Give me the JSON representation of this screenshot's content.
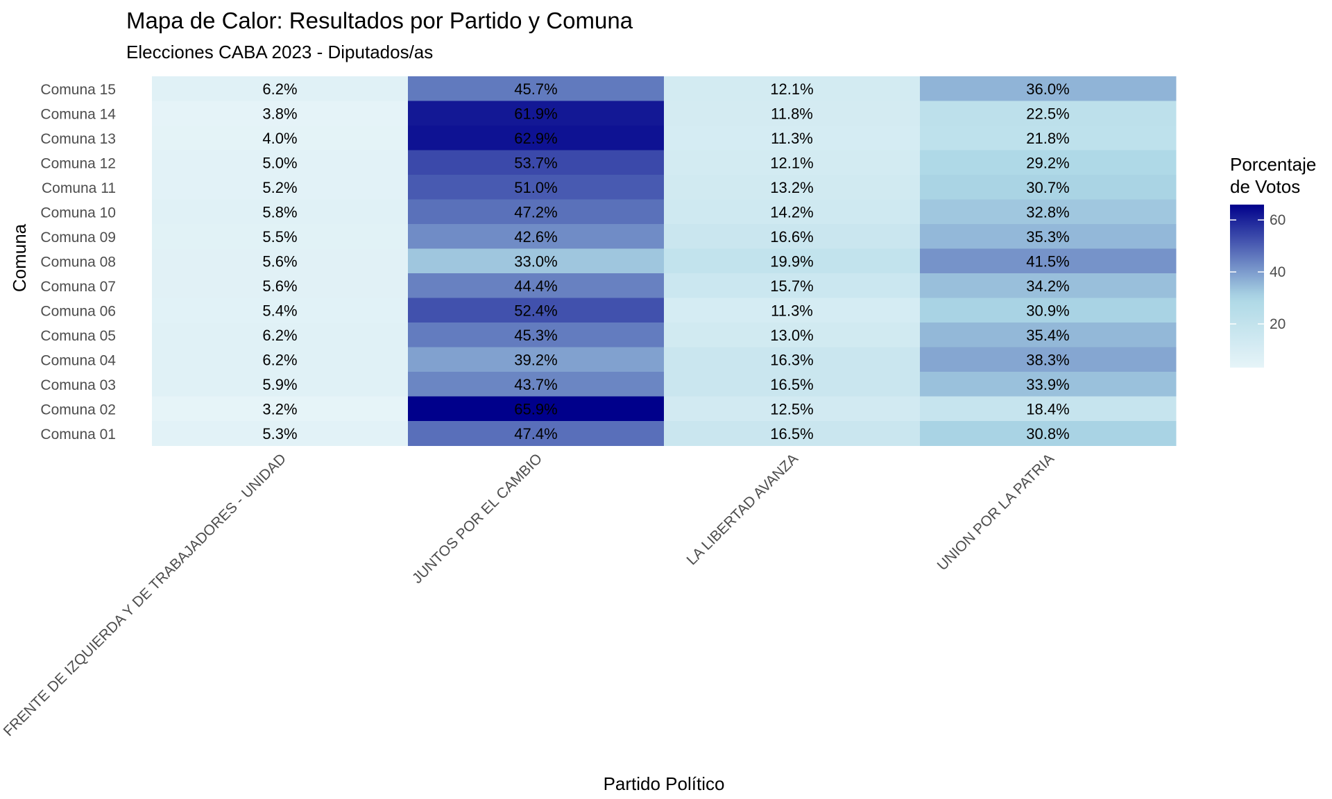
{
  "chart_data": {
    "type": "heatmap",
    "title": "Mapa de Calor: Resultados por Partido y Comuna",
    "subtitle": "Elecciones CABA 2023 - Diputados/as",
    "xlabel": "Partido Político",
    "ylabel": "Comuna",
    "x_categories": [
      "FRENTE DE IZQUIERDA Y DE TRABAJADORES - UNIDAD",
      "JUNTOS POR EL CAMBIO",
      "LA LIBERTAD AVANZA",
      "UNION POR LA PATRIA"
    ],
    "y_categories": [
      "Comuna 15",
      "Comuna 14",
      "Comuna 13",
      "Comuna 12",
      "Comuna 11",
      "Comuna 10",
      "Comuna 09",
      "Comuna 08",
      "Comuna 07",
      "Comuna 06",
      "Comuna 05",
      "Comuna 04",
      "Comuna 03",
      "Comuna 02",
      "Comuna 01"
    ],
    "values": [
      [
        6.2,
        45.7,
        12.1,
        36.0
      ],
      [
        3.8,
        61.9,
        11.8,
        22.5
      ],
      [
        4.0,
        62.9,
        11.3,
        21.8
      ],
      [
        5.0,
        53.7,
        12.1,
        29.2
      ],
      [
        5.2,
        51.0,
        13.2,
        30.7
      ],
      [
        5.8,
        47.2,
        14.2,
        32.8
      ],
      [
        5.5,
        42.6,
        16.6,
        35.3
      ],
      [
        5.6,
        33.0,
        19.9,
        41.5
      ],
      [
        5.6,
        44.4,
        15.7,
        34.2
      ],
      [
        5.4,
        52.4,
        11.3,
        30.9
      ],
      [
        6.2,
        45.3,
        13.0,
        35.4
      ],
      [
        6.2,
        39.2,
        16.3,
        38.3
      ],
      [
        5.9,
        43.7,
        16.5,
        33.9
      ],
      [
        3.2,
        65.9,
        12.5,
        18.4
      ],
      [
        5.3,
        47.4,
        16.5,
        30.8
      ]
    ],
    "value_suffix": "%",
    "legend": {
      "title_lines": [
        "Porcentaje",
        "de Votos"
      ],
      "ticks": [
        20,
        40,
        60
      ],
      "range": [
        3.2,
        65.9
      ],
      "placement": "right"
    },
    "colors": {
      "low": "#e6f4f8",
      "mid": "#add8e6",
      "high": "#00008b",
      "midpoint": 30
    },
    "grid": false
  }
}
